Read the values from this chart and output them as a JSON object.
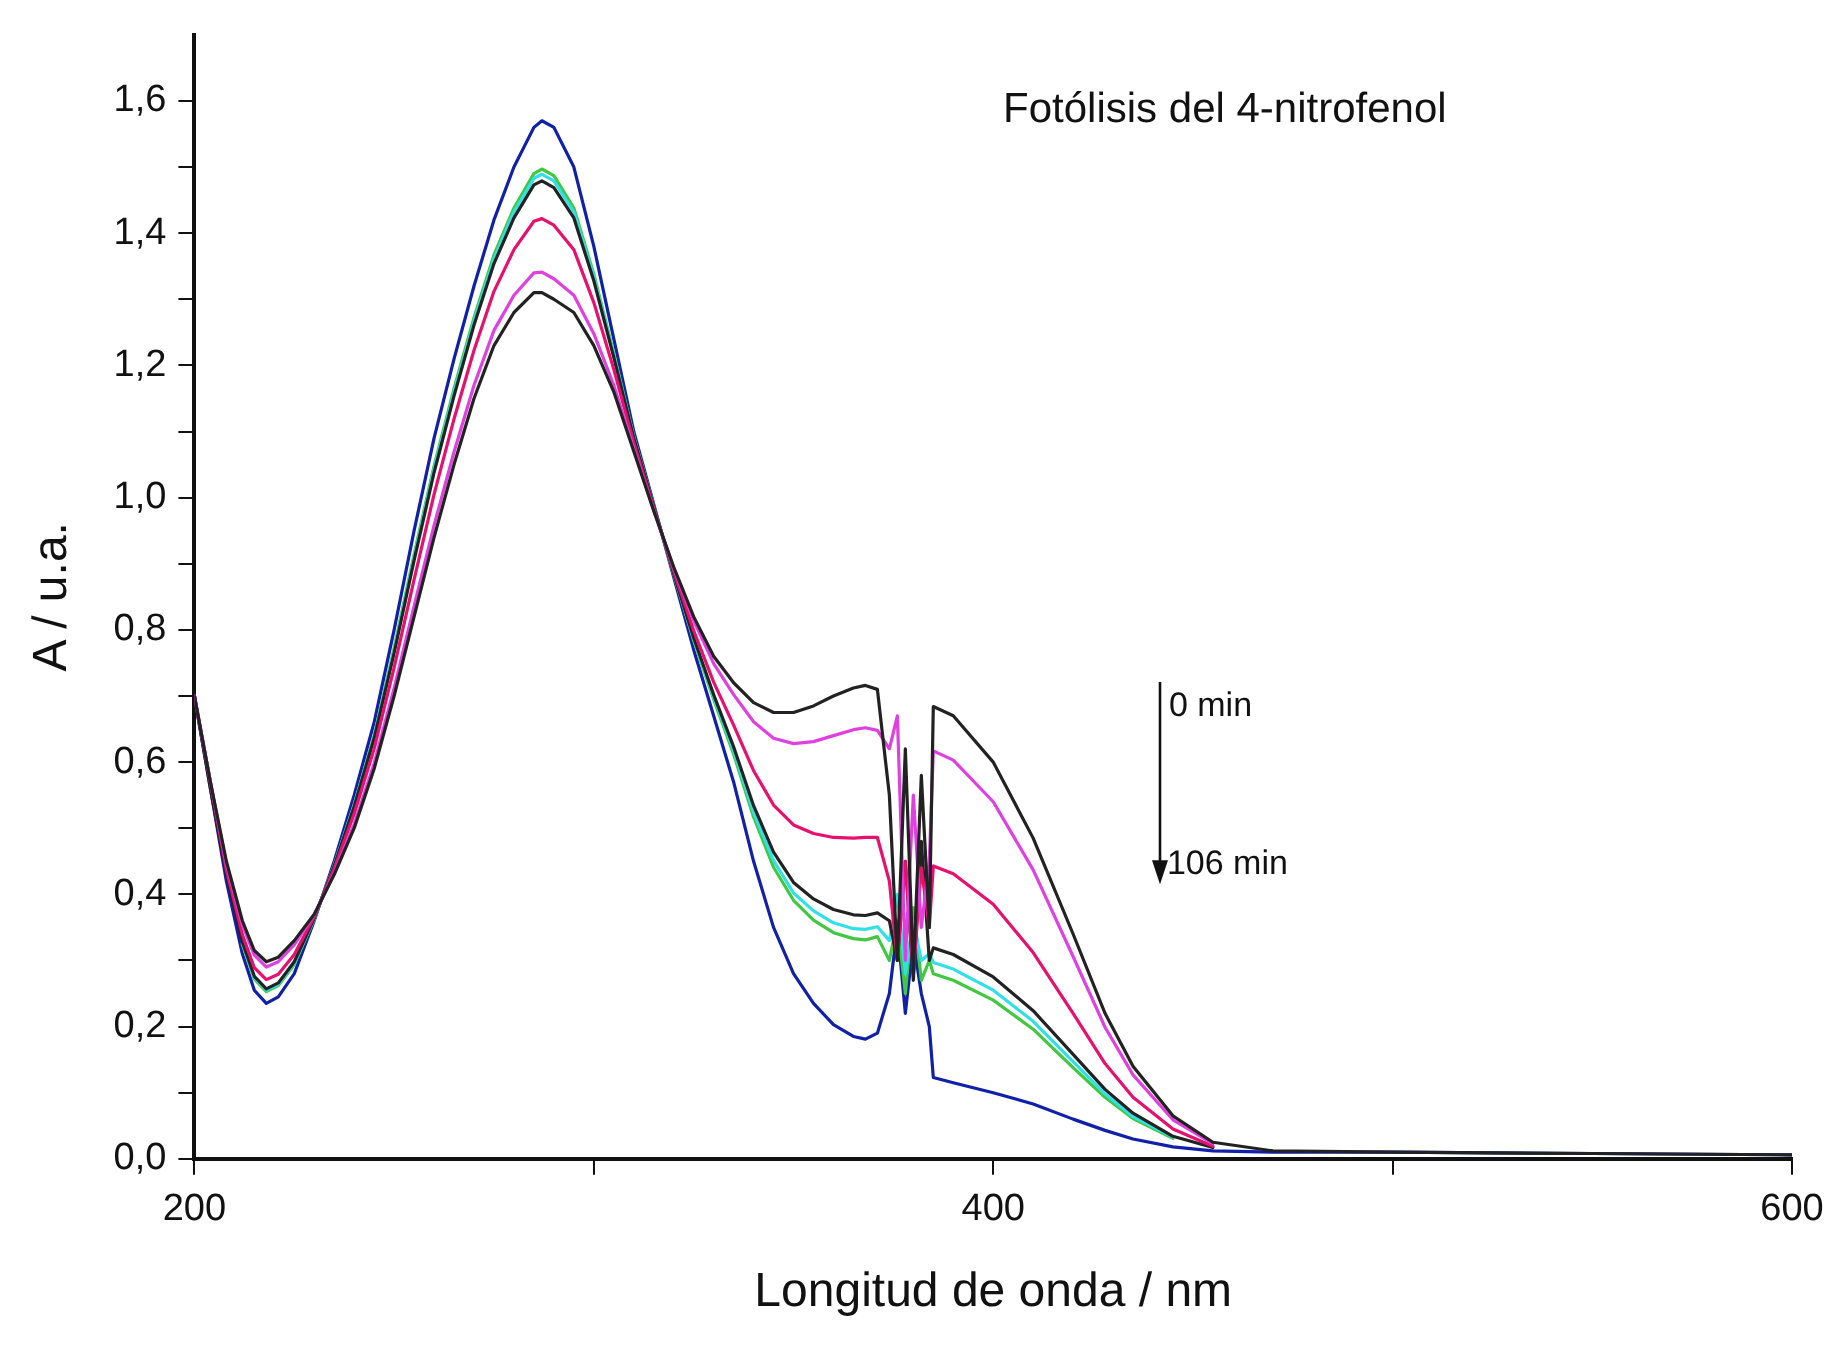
{
  "chart_data": {
    "type": "line",
    "title": "Fotólisis del 4-nitrofenol",
    "xlabel": "Longitud de onda / nm",
    "ylabel": "A / u.a.",
    "annotations": [
      "0 min",
      "106 min"
    ],
    "x": [
      200,
      204,
      208,
      212,
      215,
      218,
      221,
      225,
      230,
      235,
      240,
      245,
      250,
      255,
      260,
      265,
      270,
      275,
      280,
      285,
      287,
      290,
      295,
      300,
      305,
      310,
      315,
      320,
      325,
      330,
      335,
      340,
      345,
      350,
      355,
      360,
      365,
      368,
      371,
      374,
      376,
      378,
      380,
      382,
      384,
      385,
      390,
      400,
      410,
      420,
      428,
      435,
      445,
      455,
      470,
      500,
      550,
      600
    ],
    "xlim": [
      200,
      600
    ],
    "xticks": [
      200,
      {
        "value": 300,
        "label": null
      },
      400,
      {
        "value": 500,
        "label": null
      },
      600
    ],
    "ylim": [
      0,
      1.7
    ],
    "yticks": [
      {
        "value": 0,
        "label": "0,0"
      },
      {
        "value": 0.1,
        "label": null
      },
      {
        "value": 0.2,
        "label": "0,2"
      },
      {
        "value": 0.3,
        "label": null
      },
      {
        "value": 0.4,
        "label": "0,4"
      },
      {
        "value": 0.5,
        "label": null
      },
      {
        "value": 0.6,
        "label": "0,6"
      },
      {
        "value": 0.7,
        "label": null
      },
      {
        "value": 0.8,
        "label": "0,8"
      },
      {
        "value": 0.9,
        "label": null
      },
      {
        "value": 1.0,
        "label": "1,0"
      },
      {
        "value": 1.1,
        "label": null
      },
      {
        "value": 1.2,
        "label": "1,2"
      },
      {
        "value": 1.3,
        "label": null
      },
      {
        "value": 1.4,
        "label": "1,4"
      },
      {
        "value": 1.5,
        "label": null
      },
      {
        "value": 1.6,
        "label": "1,6"
      }
    ],
    "grid": false,
    "legend": false,
    "marker": "none",
    "line_style": "solid",
    "series": [
      {
        "color": "#222222",
        "values": [
          0.7,
          0.57,
          0.45,
          0.36,
          0.315,
          0.298,
          0.305,
          0.33,
          0.37,
          0.43,
          0.5,
          0.59,
          0.7,
          0.82,
          0.94,
          1.05,
          1.15,
          1.23,
          1.28,
          1.31,
          1.31,
          1.3,
          1.28,
          1.23,
          1.16,
          1.07,
          0.98,
          0.895,
          0.82,
          0.76,
          0.72,
          0.69,
          0.675,
          0.675,
          0.685,
          0.7,
          0.712,
          0.716,
          0.71,
          0.55,
          0.3,
          0.62,
          0.28,
          0.58,
          0.35,
          0.684,
          0.67,
          0.6,
          0.485,
          0.34,
          0.22,
          0.14,
          0.065,
          0.025,
          0.012,
          0.01,
          0.008,
          0.006
        ]
      },
      {
        "color": "#e040e0",
        "values": [
          0.7,
          0.57,
          0.446,
          0.354,
          0.308,
          0.29,
          0.298,
          0.324,
          0.369,
          0.432,
          0.506,
          0.598,
          0.712,
          0.836,
          0.958,
          1.069,
          1.17,
          1.253,
          1.306,
          1.34,
          1.341,
          1.331,
          1.306,
          1.248,
          1.17,
          1.074,
          0.981,
          0.893,
          0.814,
          0.749,
          0.702,
          0.661,
          0.636,
          0.628,
          0.631,
          0.64,
          0.649,
          0.652,
          0.648,
          0.62,
          0.67,
          0.3,
          0.55,
          0.35,
          0.45,
          0.617,
          0.603,
          0.54,
          0.437,
          0.306,
          0.199,
          0.127,
          0.059,
          0.023,
          null,
          null,
          null,
          null
        ]
      },
      {
        "color": "#e8106e",
        "values": [
          0.7,
          0.57,
          0.437,
          0.339,
          0.289,
          0.271,
          0.279,
          0.309,
          0.366,
          0.439,
          0.522,
          0.62,
          0.743,
          0.876,
          1.005,
          1.119,
          1.223,
          1.312,
          1.375,
          1.418,
          1.422,
          1.412,
          1.375,
          1.295,
          1.194,
          1.083,
          0.984,
          0.889,
          0.799,
          0.721,
          0.656,
          0.587,
          0.535,
          0.505,
          0.492,
          0.486,
          0.485,
          0.486,
          0.486,
          0.42,
          0.3,
          0.45,
          0.28,
          0.44,
          0.35,
          0.443,
          0.431,
          0.385,
          0.312,
          0.22,
          0.144,
          0.093,
          0.045,
          0.019,
          null,
          null,
          null,
          null
        ]
      },
      {
        "color": "#222222",
        "values": [
          0.7,
          0.56,
          0.431,
          0.328,
          0.276,
          0.257,
          0.266,
          0.298,
          0.364,
          0.443,
          0.533,
          0.636,
          0.765,
          0.905,
          1.038,
          1.154,
          1.261,
          1.354,
          1.423,
          1.473,
          1.479,
          1.469,
          1.423,
          1.328,
          1.212,
          1.09,
          0.987,
          0.885,
          0.788,
          0.702,
          0.623,
          0.534,
          0.464,
          0.418,
          0.393,
          0.377,
          0.369,
          0.368,
          0.372,
          0.36,
          0.3,
          0.45,
          0.27,
          0.48,
          0.3,
          0.319,
          0.309,
          0.275,
          0.224,
          0.158,
          0.105,
          0.069,
          0.034,
          0.017,
          null,
          null,
          null,
          null
        ]
      },
      {
        "color": "#30e0e8",
        "values": [
          null,
          null,
          null,
          0.326,
          0.274,
          0.255,
          0.264,
          0.296,
          0.363,
          0.444,
          0.535,
          0.638,
          0.769,
          0.91,
          1.044,
          1.16,
          1.267,
          1.361,
          1.432,
          1.483,
          1.489,
          1.479,
          1.432,
          1.334,
          1.215,
          1.091,
          0.987,
          0.885,
          0.786,
          0.698,
          0.617,
          0.524,
          0.451,
          0.402,
          0.375,
          0.357,
          0.348,
          0.347,
          0.351,
          0.33,
          0.4,
          0.28,
          0.36,
          0.3,
          0.31,
          0.297,
          0.287,
          0.255,
          0.208,
          0.147,
          0.098,
          0.064,
          0.033,
          null,
          null,
          null,
          null,
          null
        ]
      },
      {
        "color": "#40c840",
        "values": [
          null,
          null,
          null,
          0.324,
          0.272,
          0.253,
          0.262,
          0.294,
          0.363,
          0.444,
          0.536,
          0.64,
          0.772,
          0.914,
          1.048,
          1.165,
          1.272,
          1.367,
          1.438,
          1.49,
          1.497,
          1.487,
          1.438,
          1.338,
          1.218,
          1.092,
          0.987,
          0.884,
          0.784,
          0.695,
          0.612,
          0.517,
          0.441,
          0.391,
          0.361,
          0.342,
          0.333,
          0.331,
          0.336,
          0.3,
          0.36,
          0.25,
          0.38,
          0.27,
          0.3,
          0.28,
          0.27,
          0.24,
          0.196,
          0.138,
          0.093,
          0.061,
          0.031,
          null,
          null,
          null,
          null,
          null
        ]
      },
      {
        "color": "#1020a8",
        "values": [
          0.7,
          0.56,
          0.42,
          0.31,
          0.255,
          0.235,
          0.245,
          0.28,
          0.36,
          0.45,
          0.55,
          0.66,
          0.8,
          0.95,
          1.09,
          1.21,
          1.32,
          1.42,
          1.5,
          1.56,
          1.57,
          1.56,
          1.5,
          1.38,
          1.24,
          1.1,
          0.99,
          0.88,
          0.77,
          0.67,
          0.57,
          0.45,
          0.35,
          0.28,
          0.235,
          0.203,
          0.185,
          0.181,
          0.19,
          0.25,
          0.35,
          0.22,
          0.33,
          0.25,
          0.2,
          0.123,
          0.115,
          0.1,
          0.083,
          0.06,
          0.043,
          0.03,
          0.018,
          0.012,
          0.01,
          0.01,
          0.008,
          0.006
        ]
      }
    ]
  }
}
